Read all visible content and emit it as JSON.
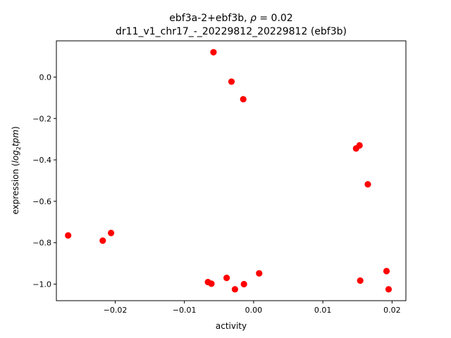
{
  "chart_data": {
    "type": "scatter",
    "title_line1": "ebf3a-2+ebf3b, ",
    "title_rho_symbol": "ρ",
    "title_rho_value": " = 0.02",
    "title_line2": "dr11_v1_chr17_-_20229812_20229812 (ebf3b)",
    "xlabel": "activity",
    "ylabel_prefix": "expression (",
    "ylabel_log": "log",
    "ylabel_sub": "2",
    "ylabel_tpm": "tpm",
    "ylabel_suffix": ")",
    "xlim": [
      -0.0285,
      0.022
    ],
    "ylim": [
      -1.08,
      0.175
    ],
    "xticks": [
      -0.02,
      -0.01,
      0.0,
      0.01,
      0.02
    ],
    "xtick_labels": [
      "−0.02",
      "−0.01",
      "0.00",
      "0.01",
      "0.02"
    ],
    "yticks": [
      0.0,
      -0.2,
      -0.4,
      -0.6,
      -0.8,
      -1.0
    ],
    "ytick_labels": [
      "0.0",
      "−0.2",
      "−0.4",
      "−0.6",
      "−0.8",
      "−1.0"
    ],
    "marker_color": "#ff0000",
    "grid": false,
    "points": [
      {
        "x": -0.0268,
        "y": -0.765
      },
      {
        "x": -0.0218,
        "y": -0.79
      },
      {
        "x": -0.0206,
        "y": -0.753
      },
      {
        "x": -0.0058,
        "y": 0.12
      },
      {
        "x": -0.0032,
        "y": -0.022
      },
      {
        "x": -0.0015,
        "y": -0.107
      },
      {
        "x": 0.0148,
        "y": -0.345
      },
      {
        "x": 0.0153,
        "y": -0.33
      },
      {
        "x": 0.0165,
        "y": -0.518
      },
      {
        "x": -0.0066,
        "y": -0.99
      },
      {
        "x": -0.0061,
        "y": -0.998
      },
      {
        "x": -0.0039,
        "y": -0.97
      },
      {
        "x": -0.0027,
        "y": -1.025
      },
      {
        "x": -0.0014,
        "y": -1.0
      },
      {
        "x": 0.0008,
        "y": -0.948
      },
      {
        "x": 0.0154,
        "y": -0.983
      },
      {
        "x": 0.0192,
        "y": -0.937
      },
      {
        "x": 0.0195,
        "y": -1.025
      }
    ]
  }
}
